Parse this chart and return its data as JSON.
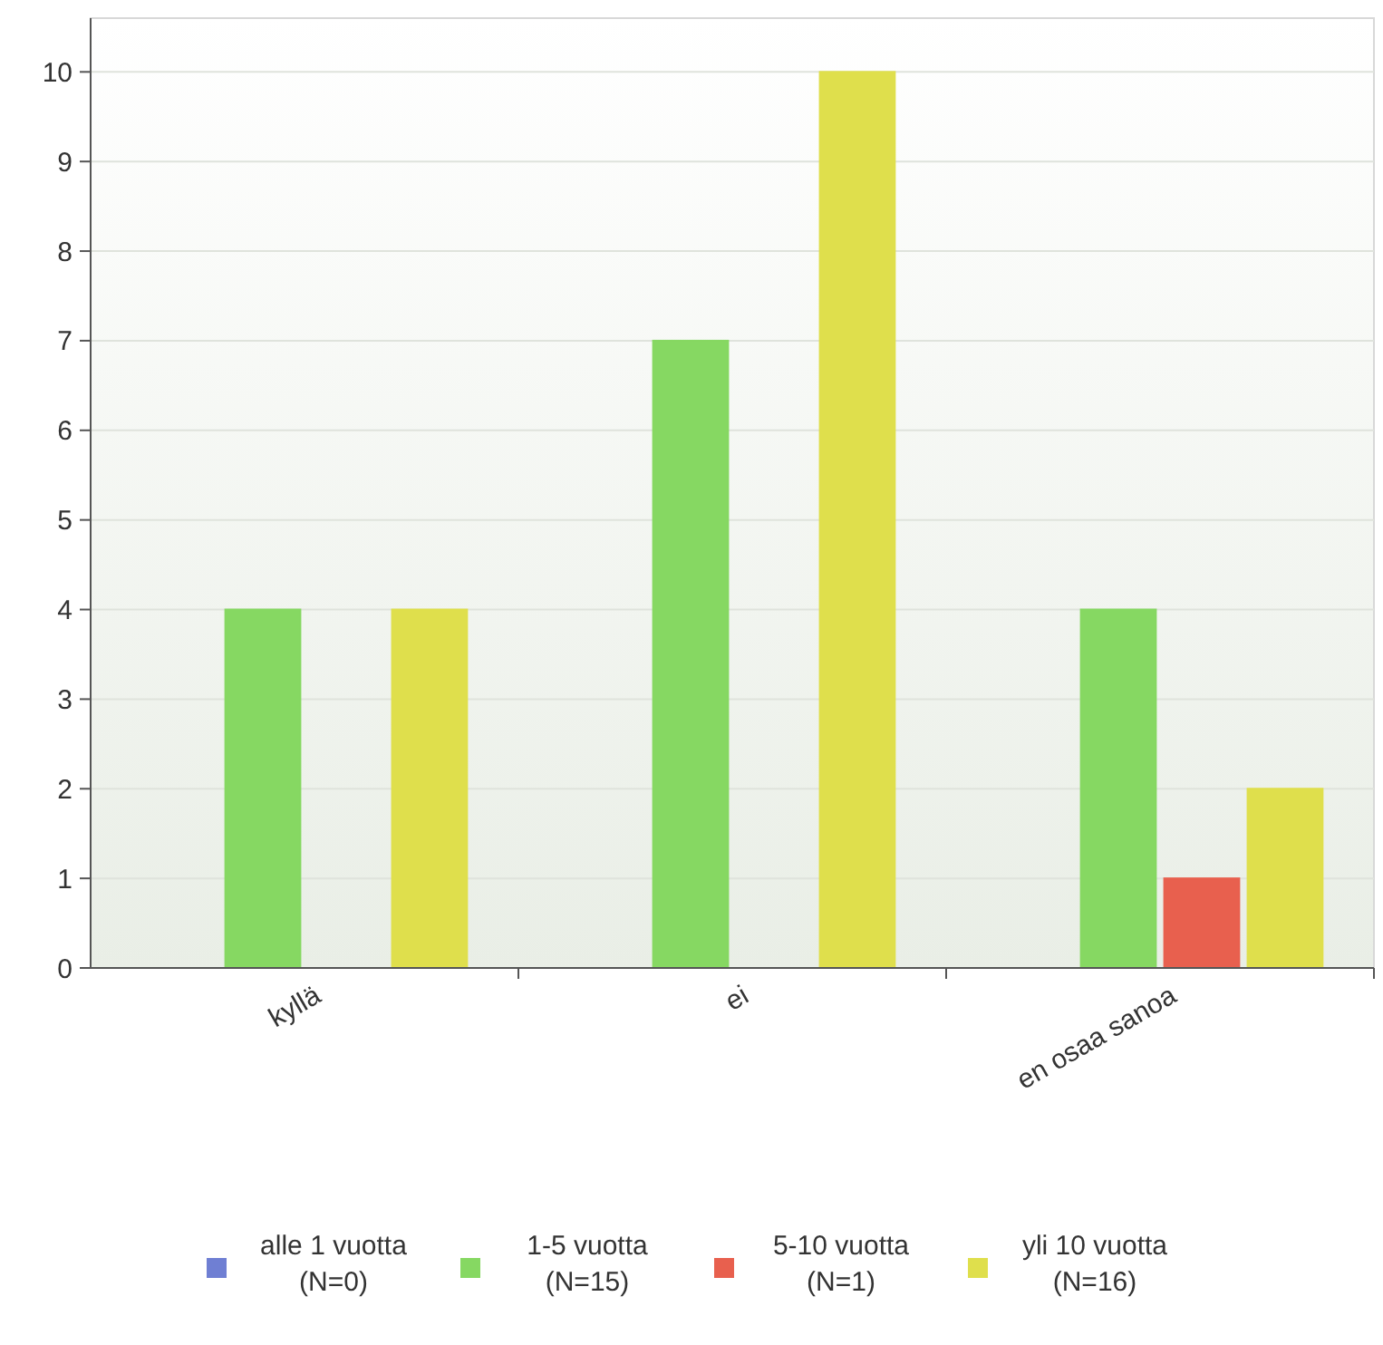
{
  "chart_data": {
    "type": "bar",
    "categories": [
      "kyllä",
      "ei",
      "en osaa sanoa"
    ],
    "series": [
      {
        "name": "alle 1 vuotta\n(N=0)",
        "color": "#6f7fd3",
        "values": [
          0,
          0,
          0
        ]
      },
      {
        "name": "1-5 vuotta\n(N=15)",
        "color": "#86d862",
        "values": [
          4,
          7,
          4
        ]
      },
      {
        "name": "5-10 vuotta\n(N=1)",
        "color": "#e8604e",
        "values": [
          0,
          0,
          1
        ]
      },
      {
        "name": "yli 10 vuotta\n(N=16)",
        "color": "#dfdf4c",
        "values": [
          4,
          10,
          2
        ]
      }
    ],
    "ylim": [
      0,
      10.6
    ],
    "yticks": [
      0,
      1,
      2,
      3,
      4,
      5,
      6,
      7,
      8,
      9,
      10
    ],
    "grid": "y",
    "legend": "bottom"
  }
}
